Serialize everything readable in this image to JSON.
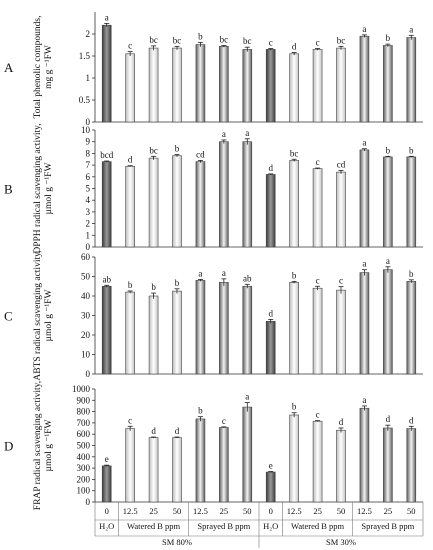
{
  "chart_data": [
    {
      "type": "bar",
      "panel": "A",
      "ylabel": [
        "Total phenolic compounds,",
        "mg g ⁻¹FW"
      ],
      "ylim": [
        0,
        2.5
      ],
      "yticks": [
        0,
        0.5,
        1,
        1.5,
        2
      ],
      "yticklabels": [
        "0",
        "0.5",
        "1",
        "1.5",
        "2"
      ],
      "values": [
        2.2,
        1.55,
        1.68,
        1.68,
        1.76,
        1.72,
        1.65,
        1.65,
        1.55,
        1.65,
        1.68,
        1.95,
        1.74,
        1.92
      ],
      "errors": [
        0.04,
        0.05,
        0.05,
        0.04,
        0.05,
        0.02,
        0.05,
        0.02,
        0.03,
        0.02,
        0.04,
        0.03,
        0.03,
        0.05
      ],
      "letters": [
        "a",
        "c",
        "bc",
        "bc",
        "b",
        "bc",
        "bc",
        "c",
        "d",
        "c",
        "bc",
        "a",
        "b",
        "a"
      ]
    },
    {
      "type": "bar",
      "panel": "B",
      "ylabel": [
        "DPPH radical scavenging activity,",
        "µmol g ⁻¹FW"
      ],
      "ylim": [
        0,
        10
      ],
      "yticks": [
        0,
        1,
        2,
        3,
        4,
        5,
        6,
        7,
        8,
        9,
        10
      ],
      "yticklabels": [
        "0",
        "1",
        "2",
        "3",
        "4",
        "5",
        "6",
        "7",
        "8",
        "9",
        "10"
      ],
      "values": [
        7.3,
        6.9,
        7.6,
        7.8,
        7.3,
        9.0,
        9.0,
        6.2,
        7.4,
        6.7,
        6.4,
        8.3,
        7.7,
        7.7
      ],
      "errors": [
        0.05,
        0.05,
        0.15,
        0.1,
        0.1,
        0.15,
        0.25,
        0.05,
        0.1,
        0.05,
        0.15,
        0.1,
        0.05,
        0.05
      ],
      "letters": [
        "bcd",
        "d",
        "bc",
        "b",
        "cd",
        "a",
        "a",
        "d",
        "bc",
        "c",
        "cd",
        "a",
        "b",
        "b"
      ]
    },
    {
      "type": "bar",
      "panel": "C",
      "ylabel": [
        "ABTS radical scavenging activity,",
        "µmol g ⁻¹FW"
      ],
      "ylim": [
        0,
        60
      ],
      "yticks": [
        0,
        10,
        20,
        30,
        40,
        50,
        60
      ],
      "yticklabels": [
        "0",
        "10",
        "20",
        "30",
        "40",
        "50",
        "60"
      ],
      "values": [
        45,
        42,
        40,
        42.5,
        48,
        47,
        45,
        27,
        47,
        44,
        43,
        52,
        53.5,
        47.5
      ],
      "errors": [
        0.5,
        0.6,
        1.5,
        1.2,
        0.5,
        1.8,
        1.0,
        1.0,
        0.5,
        1.0,
        1.8,
        1.5,
        1.5,
        0.8
      ],
      "letters": [
        "ab",
        "b",
        "b",
        "b",
        "a",
        "a",
        "ab",
        "d",
        "b",
        "c",
        "c",
        "a",
        "a",
        "b"
      ]
    },
    {
      "type": "bar",
      "panel": "D",
      "ylabel": [
        "FRAP radical scavenging activity,",
        "µmol g ⁻¹FW"
      ],
      "ylim": [
        0,
        1000
      ],
      "yticks": [
        0,
        100,
        200,
        300,
        400,
        500,
        600,
        700,
        800,
        900,
        1000
      ],
      "yticklabels": [
        "0",
        "100",
        "200",
        "300",
        "400",
        "500",
        "600",
        "700",
        "800",
        "900",
        "1000"
      ],
      "values": [
        320,
        650,
        570,
        570,
        735,
        660,
        840,
        265,
        770,
        715,
        635,
        830,
        655,
        650
      ],
      "errors": [
        6,
        20,
        5,
        5,
        20,
        5,
        40,
        5,
        20,
        5,
        20,
        20,
        25,
        20
      ],
      "letters": [
        "e",
        "c",
        "d",
        "d",
        "b",
        "c",
        "a",
        "e",
        "b",
        "c",
        "d",
        "a",
        "d",
        "d"
      ]
    }
  ],
  "x_axis": {
    "tick_labels": [
      "0",
      "12.5",
      "25",
      "50",
      "12.5",
      "25",
      "50",
      "0",
      "12.5",
      "25",
      "50",
      "12.5",
      "25",
      "50"
    ],
    "group_labels": [
      "H₂O",
      "Watered B ppm",
      "Sprayed B ppm",
      "H₂O",
      "Watered B ppm",
      "Sprayed B ppm"
    ],
    "super_groups": [
      "SM 80%",
      "SM 30%"
    ]
  },
  "colors": {
    "control": "#4a4a4a",
    "watered": "#d9d9d9",
    "sprayed": "#7a7a7a",
    "axis": "#333333"
  }
}
